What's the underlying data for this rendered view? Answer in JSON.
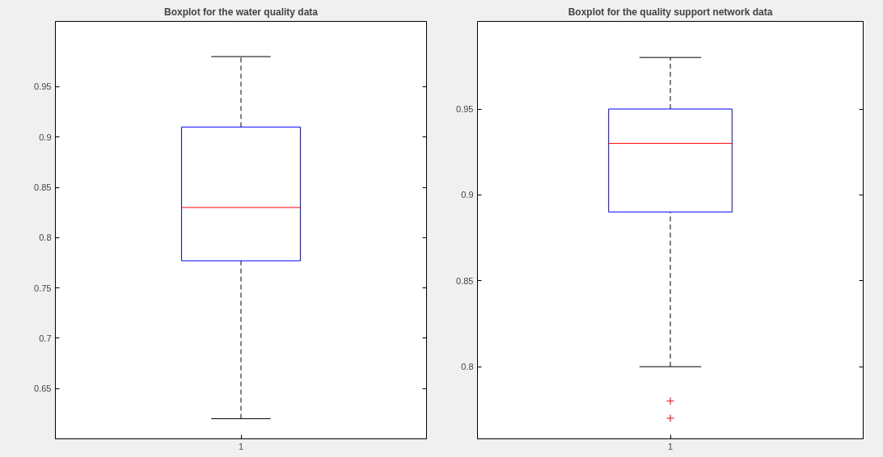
{
  "chart_data": [
    {
      "type": "box",
      "title": "Boxplot for the water quality data",
      "categories": [
        "1"
      ],
      "boxes": [
        {
          "low": 0.62,
          "q1": 0.777,
          "median": 0.83,
          "q3": 0.91,
          "high": 0.98
        }
      ],
      "ylim": [
        0.6,
        1.015
      ],
      "yticks": [
        0.65,
        0.7,
        0.75,
        0.8,
        0.85,
        0.9,
        0.95
      ]
    },
    {
      "type": "box",
      "title": "Boxplot for the quality support network data",
      "categories": [
        "1"
      ],
      "boxes": [
        {
          "low": 0.8,
          "q1": 0.89,
          "median": 0.93,
          "q3": 0.95,
          "high": 0.98,
          "outliers": [
            0.78,
            0.77
          ]
        }
      ],
      "ylim": [
        0.758,
        1.001
      ],
      "yticks": [
        0.8,
        0.85,
        0.9,
        0.95
      ]
    }
  ]
}
